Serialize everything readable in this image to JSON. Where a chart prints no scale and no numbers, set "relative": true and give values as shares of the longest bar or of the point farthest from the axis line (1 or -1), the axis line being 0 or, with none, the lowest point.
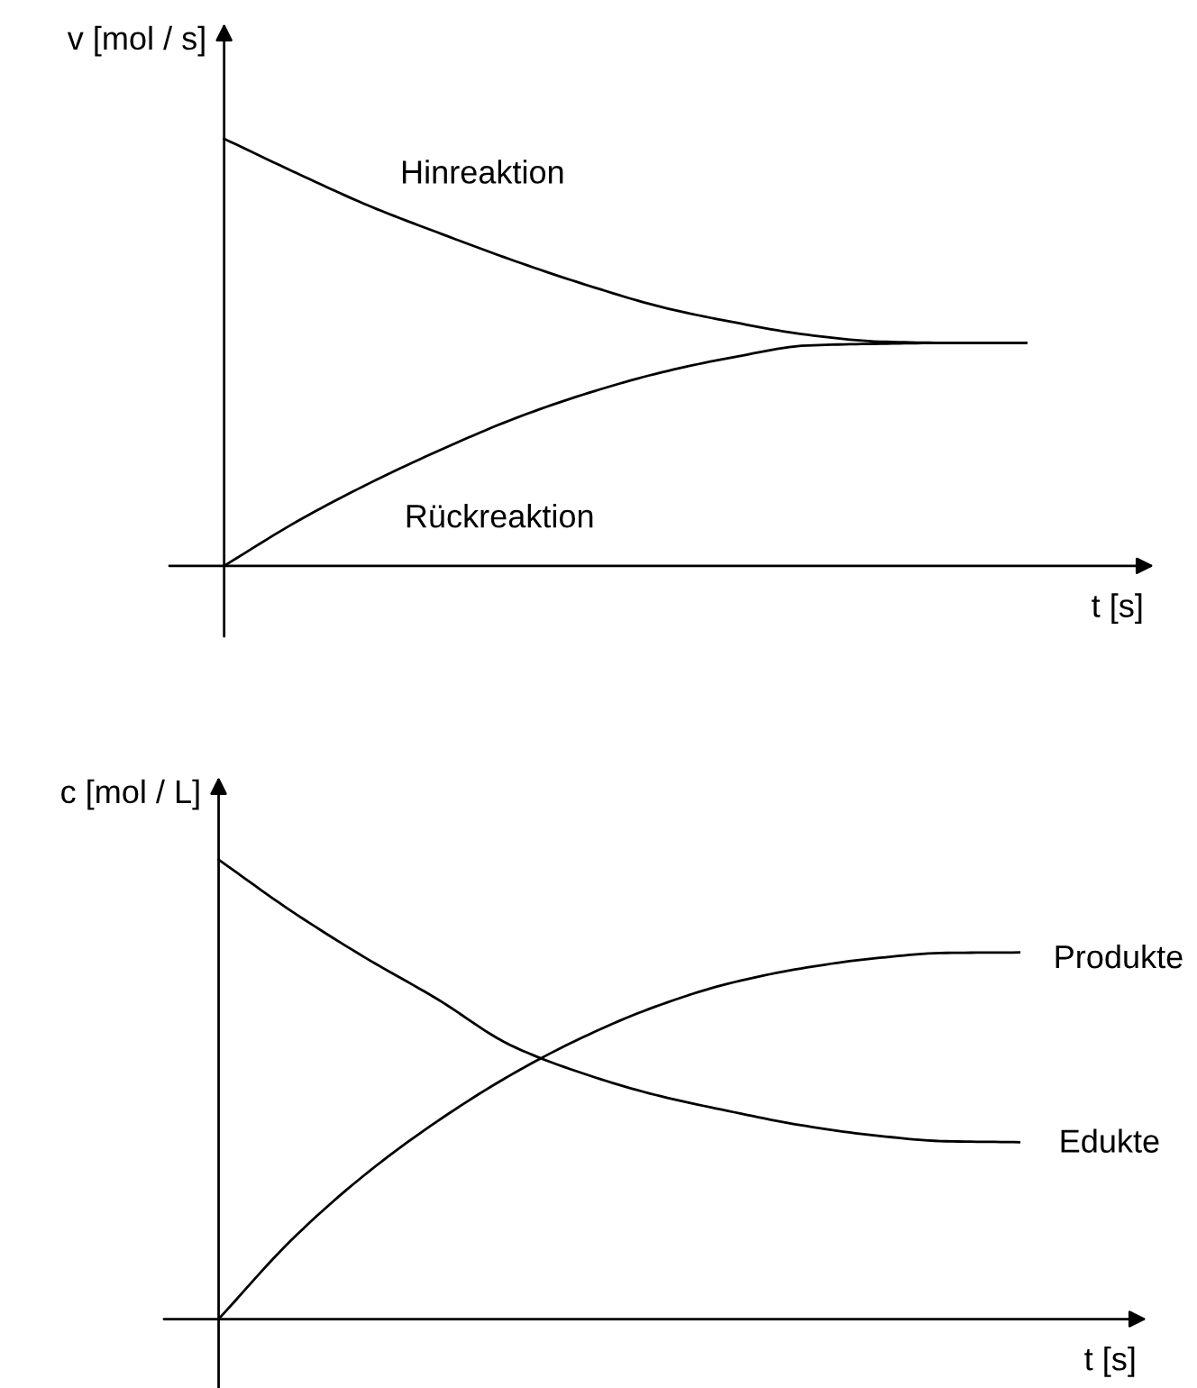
{
  "chart_data": [
    {
      "type": "line",
      "relative": true,
      "xlabel": "t [s]",
      "ylabel": "v [mol / s]",
      "legend": false,
      "grid": false,
      "marker": "none",
      "line_style": "solid",
      "categories": [
        null,
        null,
        null,
        null,
        null,
        null,
        null,
        null,
        null,
        null,
        null,
        null,
        null
      ],
      "series": [
        {
          "name": "Hinreaktion",
          "color": "#000000",
          "values": [
            1,
            0.919,
            0.842,
            0.776,
            0.713,
            0.656,
            0.606,
            0.57,
            0.541,
            0.525,
            0.522,
            0.522,
            null
          ]
        },
        {
          "name": "Rückreaktion",
          "color": "#000000",
          "values": [
            0,
            0.104,
            0.194,
            0.274,
            0.346,
            0.405,
            0.453,
            0.489,
            0.516,
            0.52,
            0.522,
            0.522,
            null
          ]
        }
      ]
    },
    {
      "type": "line",
      "relative": true,
      "xlabel": "t [s]",
      "ylabel": "c [mol / L]",
      "legend": false,
      "grid": false,
      "marker": "none",
      "line_style": "solid",
      "categories": [
        null,
        null,
        null,
        null,
        null,
        null,
        null,
        null,
        null,
        null,
        null,
        null,
        null
      ],
      "series": [
        {
          "name": "Produkte",
          "color": "#000000",
          "values": [
            0,
            0.172,
            0.313,
            0.43,
            0.53,
            0.613,
            0.68,
            0.73,
            0.763,
            0.785,
            0.797,
            0.798,
            null
          ]
        },
        {
          "name": "Edukte",
          "color": "#000000",
          "values": [
            1,
            0.888,
            0.788,
            0.697,
            0.597,
            0.535,
            0.488,
            0.453,
            0.422,
            0.4,
            0.387,
            0.385,
            null
          ]
        }
      ]
    }
  ]
}
